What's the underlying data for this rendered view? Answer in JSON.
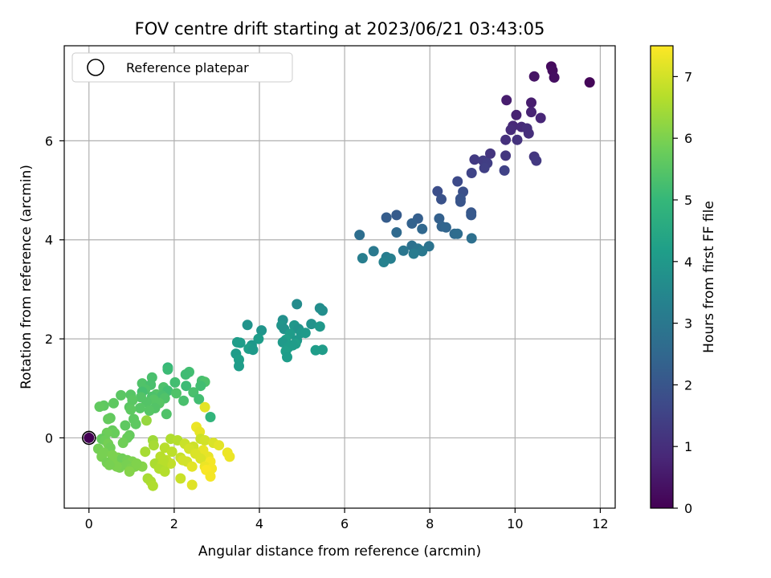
{
  "chart_data": {
    "type": "scatter",
    "title": "FOV centre drift starting at 2023/06/21 03:43:05",
    "xlabel": "Angular distance from reference (arcmin)",
    "ylabel": "Rotation from reference (arcmin)",
    "colorbar_label": "Hours from first FF file",
    "xlim": [
      -0.58,
      12.35
    ],
    "ylim": [
      -1.42,
      7.92
    ],
    "xticks": [
      0,
      2,
      4,
      6,
      8,
      10,
      12
    ],
    "yticks": [
      0,
      2,
      4,
      6
    ],
    "colorbar_range": [
      0,
      7.5
    ],
    "colorbar_ticks": [
      0,
      1,
      2,
      3,
      4,
      5,
      6,
      7
    ],
    "colormap": [
      "#440154",
      "#482878",
      "#3e4989",
      "#31688e",
      "#26828e",
      "#1f9e89",
      "#35b779",
      "#6ece58",
      "#b5de2b",
      "#fde725"
    ],
    "grid": true,
    "legend": {
      "position": "top-left",
      "entries": [
        "Reference platepar"
      ]
    },
    "reference_point": {
      "x": 0,
      "y": 0,
      "hours": 0
    },
    "points_x_y_hours": [
      [
        11.75,
        7.18,
        0.1
      ],
      [
        10.85,
        7.5,
        0.2
      ],
      [
        10.88,
        7.42,
        0.25
      ],
      [
        10.92,
        7.28,
        0.3
      ],
      [
        10.45,
        7.3,
        0.4
      ],
      [
        9.8,
        6.82,
        0.6
      ],
      [
        10.38,
        6.77,
        0.6
      ],
      [
        10.03,
        6.52,
        0.7
      ],
      [
        10.38,
        6.58,
        0.75
      ],
      [
        10.6,
        6.46,
        0.8
      ],
      [
        9.95,
        6.3,
        0.85
      ],
      [
        10.15,
        6.28,
        0.9
      ],
      [
        9.9,
        6.22,
        0.95
      ],
      [
        10.28,
        6.25,
        1.0
      ],
      [
        10.32,
        6.15,
        1.0
      ],
      [
        9.78,
        6.02,
        1.05
      ],
      [
        10.05,
        6.02,
        1.1
      ],
      [
        9.42,
        5.74,
        1.15
      ],
      [
        9.78,
        5.7,
        1.2
      ],
      [
        10.45,
        5.68,
        1.2
      ],
      [
        10.5,
        5.6,
        1.25
      ],
      [
        9.05,
        5.62,
        1.3
      ],
      [
        9.25,
        5.6,
        1.35
      ],
      [
        9.35,
        5.55,
        1.4
      ],
      [
        9.28,
        5.45,
        1.45
      ],
      [
        9.75,
        5.4,
        1.5
      ],
      [
        8.98,
        5.35,
        1.55
      ],
      [
        8.65,
        5.18,
        1.7
      ],
      [
        8.18,
        4.98,
        1.8
      ],
      [
        8.78,
        4.97,
        1.85
      ],
      [
        8.27,
        4.82,
        1.9
      ],
      [
        8.72,
        4.83,
        1.95
      ],
      [
        8.72,
        4.77,
        2.0
      ],
      [
        8.97,
        4.55,
        2.05
      ],
      [
        8.97,
        4.5,
        2.1
      ],
      [
        7.22,
        4.5,
        2.15
      ],
      [
        6.98,
        4.45,
        2.2
      ],
      [
        7.72,
        4.43,
        2.25
      ],
      [
        8.22,
        4.43,
        2.3
      ],
      [
        7.58,
        4.33,
        2.35
      ],
      [
        8.28,
        4.27,
        2.4
      ],
      [
        8.38,
        4.25,
        2.45
      ],
      [
        7.82,
        4.22,
        2.5
      ],
      [
        7.22,
        4.15,
        2.55
      ],
      [
        8.58,
        4.12,
        2.6
      ],
      [
        8.65,
        4.12,
        2.65
      ],
      [
        6.35,
        4.1,
        2.7
      ],
      [
        8.98,
        4.03,
        2.75
      ],
      [
        7.58,
        3.88,
        2.8
      ],
      [
        7.98,
        3.87,
        2.85
      ],
      [
        7.72,
        3.82,
        2.9
      ],
      [
        7.38,
        3.78,
        2.95
      ],
      [
        7.82,
        3.77,
        3.0
      ],
      [
        6.68,
        3.77,
        3.05
      ],
      [
        7.62,
        3.72,
        3.1
      ],
      [
        6.98,
        3.65,
        3.15
      ],
      [
        6.42,
        3.63,
        3.2
      ],
      [
        7.08,
        3.62,
        3.25
      ],
      [
        6.92,
        3.55,
        3.3
      ],
      [
        4.88,
        2.7,
        3.6
      ],
      [
        5.42,
        2.62,
        3.65
      ],
      [
        5.48,
        2.57,
        3.7
      ],
      [
        4.55,
        2.38,
        3.75
      ],
      [
        5.22,
        2.3,
        3.8
      ],
      [
        3.72,
        2.28,
        3.85
      ],
      [
        4.52,
        2.27,
        3.9
      ],
      [
        4.82,
        2.27,
        3.95
      ],
      [
        5.42,
        2.25,
        4.0
      ],
      [
        4.58,
        2.2,
        3.8
      ],
      [
        4.92,
        2.2,
        3.85
      ],
      [
        4.05,
        2.17,
        3.9
      ],
      [
        4.98,
        2.12,
        4.0
      ],
      [
        5.08,
        2.12,
        4.05
      ],
      [
        4.72,
        2.1,
        4.1
      ],
      [
        3.98,
        2.0,
        4.15
      ],
      [
        4.62,
        1.98,
        4.2
      ],
      [
        4.88,
        1.97,
        4.0
      ],
      [
        4.55,
        1.93,
        4.05
      ],
      [
        3.48,
        1.93,
        4.1
      ],
      [
        3.55,
        1.92,
        4.15
      ],
      [
        4.85,
        1.9,
        4.2
      ],
      [
        3.82,
        1.87,
        4.0
      ],
      [
        4.78,
        1.87,
        4.1
      ],
      [
        4.68,
        1.83,
        4.15
      ],
      [
        3.75,
        1.8,
        4.2
      ],
      [
        3.85,
        1.78,
        4.05
      ],
      [
        5.48,
        1.78,
        4.1
      ],
      [
        5.32,
        1.77,
        4.15
      ],
      [
        4.62,
        1.75,
        4.2
      ],
      [
        3.45,
        1.7,
        4.1
      ],
      [
        4.65,
        1.63,
        4.15
      ],
      [
        3.52,
        1.58,
        4.2
      ],
      [
        3.52,
        1.45,
        4.15
      ],
      [
        1.85,
        1.42,
        5.0
      ],
      [
        1.85,
        1.38,
        5.1
      ],
      [
        2.35,
        1.33,
        5.2
      ],
      [
        2.27,
        1.28,
        5.15
      ],
      [
        1.48,
        1.22,
        5.3
      ],
      [
        2.65,
        1.15,
        5.25
      ],
      [
        2.72,
        1.13,
        5.35
      ],
      [
        2.02,
        1.12,
        5.2
      ],
      [
        1.25,
        1.1,
        5.4
      ],
      [
        1.45,
        1.07,
        5.3
      ],
      [
        2.28,
        1.05,
        5.1
      ],
      [
        2.62,
        1.05,
        5.2
      ],
      [
        1.75,
        1.02,
        5.35
      ],
      [
        1.32,
        0.98,
        5.4
      ],
      [
        1.85,
        0.95,
        5.2
      ],
      [
        1.25,
        0.93,
        5.25
      ],
      [
        2.45,
        0.92,
        5.3
      ],
      [
        2.05,
        0.9,
        5.4
      ],
      [
        1.58,
        0.88,
        5.45
      ],
      [
        0.98,
        0.87,
        5.5
      ],
      [
        0.75,
        0.86,
        5.55
      ],
      [
        1.72,
        0.85,
        5.3
      ],
      [
        1.48,
        0.83,
        5.35
      ],
      [
        1.22,
        0.82,
        5.45
      ],
      [
        1.78,
        0.8,
        5.4
      ],
      [
        2.58,
        0.78,
        5.2
      ],
      [
        1.52,
        0.77,
        5.5
      ],
      [
        1.02,
        0.76,
        5.55
      ],
      [
        2.22,
        0.75,
        5.3
      ],
      [
        1.35,
        0.72,
        5.45
      ],
      [
        0.58,
        0.7,
        5.6
      ],
      [
        1.65,
        0.7,
        5.5
      ],
      [
        0.35,
        0.65,
        5.6
      ],
      [
        0.25,
        0.63,
        5.65
      ],
      [
        0.95,
        0.62,
        5.55
      ],
      [
        1.2,
        0.6,
        5.5
      ],
      [
        1.55,
        0.6,
        5.45
      ],
      [
        0.98,
        0.57,
        5.6
      ],
      [
        1.42,
        0.55,
        5.5
      ],
      [
        1.82,
        0.48,
        5.4
      ],
      [
        2.85,
        0.42,
        4.9
      ],
      [
        0.5,
        0.4,
        5.65
      ],
      [
        0.45,
        0.38,
        5.7
      ],
      [
        1.05,
        0.38,
        5.6
      ],
      [
        1.35,
        0.35,
        6.3
      ],
      [
        1.1,
        0.28,
        5.6
      ],
      [
        0.85,
        0.25,
        5.6
      ],
      [
        0.55,
        0.15,
        5.7
      ],
      [
        0.6,
        0.1,
        5.75
      ],
      [
        0.42,
        0.1,
        5.8
      ],
      [
        0.95,
        0.05,
        5.7
      ],
      [
        0.9,
        0.0,
        5.75
      ],
      [
        0.3,
        -0.02,
        5.7
      ],
      [
        0.38,
        -0.05,
        5.8
      ],
      [
        0.8,
        -0.1,
        5.85
      ],
      [
        0.45,
        -0.12,
        5.9
      ],
      [
        0.5,
        -0.2,
        5.85
      ],
      [
        0.22,
        -0.22,
        5.9
      ],
      [
        0.35,
        -0.3,
        5.95
      ],
      [
        0.55,
        -0.35,
        6.0
      ],
      [
        0.3,
        -0.38,
        5.95
      ],
      [
        0.68,
        -0.4,
        6.0
      ],
      [
        0.78,
        -0.42,
        5.85
      ],
      [
        0.9,
        -0.45,
        5.9
      ],
      [
        1.02,
        -0.48,
        6.0
      ],
      [
        0.42,
        -0.5,
        5.9
      ],
      [
        0.55,
        -0.52,
        6.0
      ],
      [
        0.88,
        -0.55,
        5.95
      ],
      [
        1.08,
        -0.58,
        6.05
      ],
      [
        0.98,
        -0.62,
        6.0
      ],
      [
        0.72,
        -0.6,
        5.95
      ],
      [
        1.25,
        -0.58,
        6.1
      ],
      [
        1.12,
        -0.52,
        6.05
      ],
      [
        0.65,
        -0.58,
        6.0
      ],
      [
        0.48,
        -0.55,
        5.95
      ],
      [
        0.95,
        -0.68,
        6.1
      ],
      [
        2.72,
        0.62,
        7.2
      ],
      [
        2.52,
        0.22,
        7.3
      ],
      [
        2.6,
        0.12,
        7.25
      ],
      [
        1.92,
        -0.02,
        6.6
      ],
      [
        2.08,
        -0.05,
        6.65
      ],
      [
        1.5,
        -0.05,
        6.4
      ],
      [
        2.62,
        -0.02,
        6.9
      ],
      [
        2.72,
        -0.05,
        7.0
      ],
      [
        2.92,
        -0.1,
        7.1
      ],
      [
        3.05,
        -0.15,
        7.2
      ],
      [
        1.52,
        -0.15,
        6.5
      ],
      [
        2.25,
        -0.12,
        6.9
      ],
      [
        2.45,
        -0.18,
        6.95
      ],
      [
        2.35,
        -0.22,
        7.0
      ],
      [
        1.78,
        -0.2,
        6.7
      ],
      [
        2.68,
        -0.25,
        7.25
      ],
      [
        1.32,
        -0.28,
        6.5
      ],
      [
        1.95,
        -0.28,
        6.75
      ],
      [
        2.5,
        -0.32,
        7.1
      ],
      [
        3.25,
        -0.3,
        7.3
      ],
      [
        3.3,
        -0.38,
        7.3
      ],
      [
        2.8,
        -0.38,
        7.25
      ],
      [
        1.68,
        -0.38,
        6.7
      ],
      [
        2.15,
        -0.4,
        6.85
      ],
      [
        2.62,
        -0.42,
        7.1
      ],
      [
        2.2,
        -0.45,
        7.0
      ],
      [
        1.82,
        -0.45,
        6.8
      ],
      [
        2.3,
        -0.48,
        7.0
      ],
      [
        2.85,
        -0.48,
        7.4
      ],
      [
        1.92,
        -0.52,
        6.8
      ],
      [
        1.55,
        -0.52,
        6.55
      ],
      [
        1.72,
        -0.55,
        6.7
      ],
      [
        2.72,
        -0.58,
        7.3
      ],
      [
        2.42,
        -0.58,
        7.2
      ],
      [
        2.88,
        -0.62,
        7.4
      ],
      [
        1.65,
        -0.62,
        6.6
      ],
      [
        2.75,
        -0.65,
        7.45
      ],
      [
        1.78,
        -0.68,
        6.65
      ],
      [
        2.85,
        -0.78,
        7.4
      ],
      [
        2.15,
        -0.82,
        6.9
      ],
      [
        1.38,
        -0.82,
        6.5
      ],
      [
        1.45,
        -0.88,
        6.55
      ],
      [
        2.42,
        -0.95,
        7.15
      ],
      [
        1.5,
        -0.97,
        6.6
      ],
      [
        1.75,
        -0.45,
        6.7
      ]
    ]
  }
}
